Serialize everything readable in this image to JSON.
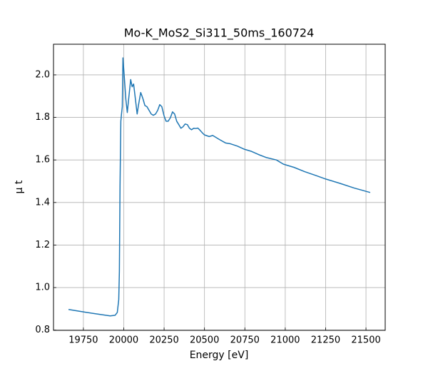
{
  "chart_data": {
    "type": "line",
    "title": "Mo-K_MoS2_Si311_50ms_160724",
    "x_label": "Energy [eV]",
    "y_label": "μ t",
    "xlim": [
      19565,
      21619
    ],
    "ylim": [
      0.799,
      2.144
    ],
    "xticks": [
      19750,
      20000,
      20250,
      20500,
      20750,
      21000,
      21250,
      21500
    ],
    "yticks": [
      0.8,
      {
        "value": 1,
        "label": "1.0"
      },
      1.2,
      1.4,
      1.6,
      1.8,
      {
        "value": 2,
        "label": "2.0"
      }
    ],
    "grid": true,
    "series": [
      {
        "color": "#1f77b4",
        "x": [
          19658,
          19763,
          19851,
          19916,
          19947,
          19960,
          19969,
          19973,
          19977,
          19982,
          19986,
          19991,
          19995,
          20004,
          20013,
          20022,
          20030,
          20043,
          20052,
          20061,
          20070,
          20083,
          20091,
          20105,
          20118,
          20131,
          20144,
          20157,
          20170,
          20183,
          20197,
          20210,
          20223,
          20236,
          20249,
          20262,
          20275,
          20289,
          20302,
          20315,
          20328,
          20341,
          20354,
          20367,
          20380,
          20394,
          20407,
          20420,
          20433,
          20446,
          20459,
          20472,
          20486,
          20499,
          20529,
          20551,
          20573,
          20595,
          20630,
          20661,
          20704,
          20748,
          20792,
          20836,
          20880,
          20945,
          20989,
          21055,
          21120,
          21186,
          21252,
          21339,
          21427,
          21526
        ],
        "values": [
          0.897,
          0.884,
          0.874,
          0.867,
          0.87,
          0.883,
          0.943,
          1.077,
          1.48,
          1.782,
          1.815,
          1.85,
          2.08,
          1.984,
          1.885,
          1.823,
          1.884,
          1.978,
          1.944,
          1.957,
          1.9,
          1.816,
          1.857,
          1.917,
          1.89,
          1.856,
          1.85,
          1.833,
          1.816,
          1.81,
          1.816,
          1.833,
          1.86,
          1.85,
          1.809,
          1.782,
          1.782,
          1.799,
          1.826,
          1.816,
          1.782,
          1.766,
          1.749,
          1.756,
          1.769,
          1.766,
          1.749,
          1.742,
          1.749,
          1.748,
          1.75,
          1.74,
          1.728,
          1.718,
          1.71,
          1.715,
          1.705,
          1.695,
          1.68,
          1.676,
          1.665,
          1.65,
          1.64,
          1.625,
          1.612,
          1.6,
          1.58,
          1.565,
          1.545,
          1.528,
          1.51,
          1.49,
          1.468,
          1.447
        ]
      }
    ]
  }
}
